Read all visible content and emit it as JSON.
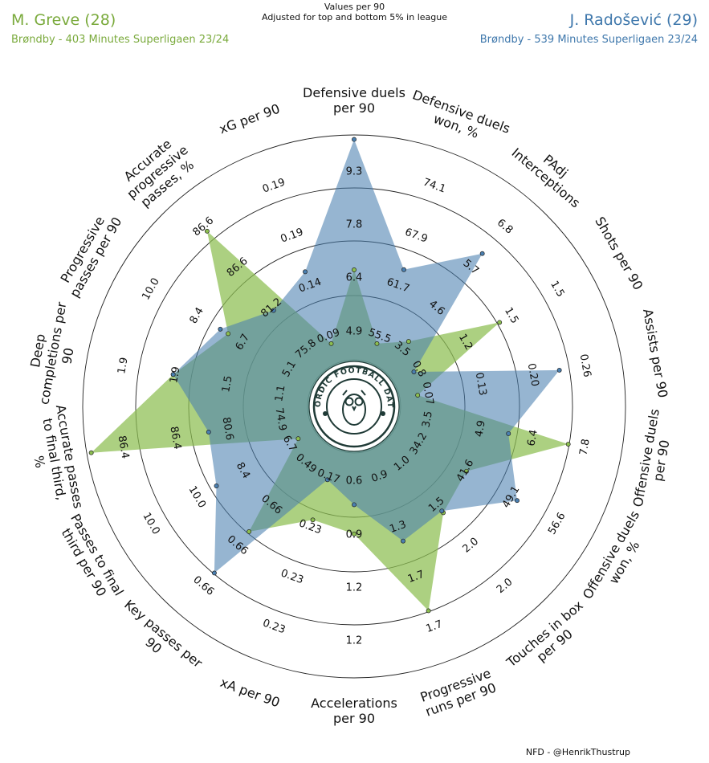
{
  "header": {
    "note_line1": "Values per 90",
    "note_line2": "Adjusted for top and bottom 5% in league",
    "credit": "NFD - @HenrikThustrup",
    "logo_text": "NORDIC FOOTBALL DATA"
  },
  "colors": {
    "player1": "#8cbe50",
    "player2": "#4a7fb0",
    "player1_text": "#7aaa3c",
    "player2_text": "#3f78ac",
    "overlap": "#5e9a8a",
    "logo": "#1f3a36"
  },
  "chart_data": {
    "type": "radar",
    "players": [
      {
        "name": "M. Greve (28)",
        "subtitle": "Brøndby - 403 Minutes Superligaen 23/24"
      },
      {
        "name": "J. Radošević (29)",
        "subtitle": "Brøndby - 539 Minutes Superligaen 23/24"
      }
    ],
    "ring_levels": [
      "20%",
      "40%",
      "60%",
      "80%"
    ],
    "axes": [
      {
        "label": [
          "Defensive duels",
          "per 90"
        ],
        "ticks": [
          "4.9",
          "6.4",
          "7.8",
          "9.3"
        ],
        "p1": 0.4,
        "p2": 0.98
      },
      {
        "label": [
          "Defensive duels",
          "won, %"
        ],
        "ticks": [
          "55.5",
          "61.7",
          "67.9",
          "74.1"
        ],
        "p1": 0.09,
        "p2": 0.44
      },
      {
        "label": [
          "PAdj",
          "Interceptions"
        ],
        "ticks": [
          "3.5",
          "4.6",
          "5.7",
          "6.8"
        ],
        "p1": 0.17,
        "p2": 0.68
      },
      {
        "label": [
          "Shots per 90"
        ],
        "ticks": [
          "0.8",
          "1.2",
          "1.5",
          "1.5"
        ],
        "p1": 0.54,
        "p2": 0.1
      },
      {
        "label": [
          "Assists per 90"
        ],
        "ticks": [
          "0.07",
          "0.13",
          "0.20",
          "0.26"
        ],
        "p1": 0.08,
        "p2": 0.72
      },
      {
        "label": [
          "Offensive duels",
          "per 90"
        ],
        "ticks": [
          "3.5",
          "4.9",
          "6.4",
          "7.8"
        ],
        "p1": 0.76,
        "p2": 0.49
      },
      {
        "label": [
          "Offensive duels",
          "won, %"
        ],
        "ticks": [
          "34.2",
          "41.6",
          "49.1",
          "56.6"
        ],
        "p1": 0.37,
        "p2": 0.63
      },
      {
        "label": [
          "Touches in box",
          "per 90"
        ],
        "ticks": [
          "1.0",
          "1.5",
          "2.0",
          "2.0"
        ],
        "p1": 0.41,
        "p2": 0.4
      },
      {
        "label": [
          "Progressive",
          "runs per 90"
        ],
        "ticks": [
          "0.9",
          "1.3",
          "1.7",
          "1.7"
        ],
        "p1": 0.76,
        "p2": 0.43
      },
      {
        "label": [
          "Accelerations",
          "per 90"
        ],
        "ticks": [
          "0.6",
          "0.9",
          "1.2",
          "1.2"
        ],
        "p1": 0.36,
        "p2": 0.23
      },
      {
        "label": [
          "xA per 90"
        ],
        "ticks": [
          "0.17",
          "0.23",
          "0.23",
          "0.23"
        ],
        "p1": 0.33,
        "p2": 0.14
      },
      {
        "label": [
          "Key passes per",
          "90"
        ],
        "ticks": [
          "0.49",
          "0.66",
          "0.66",
          "0.66"
        ],
        "p1": 0.52,
        "p2": 0.76
      },
      {
        "label": [
          "Passes to final",
          "third per 90"
        ],
        "ticks": [
          "6.7",
          "8.4",
          "10.0",
          "10.0"
        ],
        "p1": 0.08,
        "p2": 0.5
      },
      {
        "label": [
          "Accurate passes",
          "to final third,",
          "%"
        ],
        "ticks": [
          "74.9",
          "80.6",
          "86.4",
          "86.4"
        ],
        "p1": 0.98,
        "p2": 0.45
      },
      {
        "label": [
          "Deep",
          "completions per",
          "90"
        ],
        "ticks": [
          "1.1",
          "1.5",
          "1.9",
          "1.9"
        ],
        "p1": 0.61,
        "p2": 0.61
      },
      {
        "label": [
          "Progressive",
          "passes per 90"
        ],
        "ticks": [
          "5.1",
          "6.7",
          "8.4",
          "10.0"
        ],
        "p1": 0.44,
        "p2": 0.48
      },
      {
        "label": [
          "Accurate",
          "progressive",
          "passes, %"
        ],
        "ticks": [
          "75.8",
          "81.2",
          "86.6",
          "86.6"
        ],
        "p1": 0.81,
        "p2": 0.35
      },
      {
        "label": [
          "xG per 90"
        ],
        "ticks": [
          "0.09",
          "0.14",
          "0.19",
          "0.19"
        ],
        "p1": 0.09,
        "p2": 0.43
      }
    ]
  }
}
